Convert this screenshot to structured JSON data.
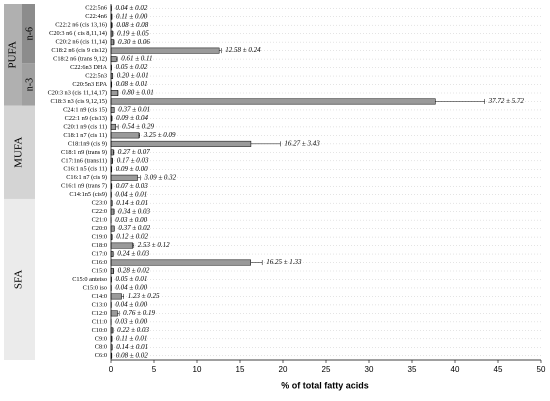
{
  "chart_data": {
    "type": "bar",
    "orientation": "horizontal",
    "x_label": "% of total fatty acids",
    "categories": [
      "C22:5n6",
      "C22:4n6",
      "C22:2 n6 (cis 13,16)",
      "C20:3 n6 ( cis 8,11,14)",
      "C20:2 n6 (cis 11,14)",
      "C18:2 n6 (cis 9 cis12)",
      "C18:2 n6 (trans 9,12)",
      "C22:6n3 DHA",
      "C22:5n3",
      "C20:5n3 EPA",
      "C20:3 n3 (cis 11,14,17)",
      "C18:3 n3 (cis 9,12,15)",
      "C24:1 n9 (cis 15)",
      "C22:1 n9 (cis13)",
      "C20:1 n9 (cis 11)",
      "C18:1 n7 (cis 11)",
      "C18:1n9 (cis 9)",
      "C18:1 n9 (trans 9)",
      "C17:1n6 (trans11)",
      "C16:1 n5 (cis 11)",
      "C16:1 n7 (cis 9)",
      "C16:1 n9 (trans 7)",
      "C14:1n5 (cis9)",
      "C23:0",
      "C22:0",
      "C21:0",
      "C20:0",
      "C19:0",
      "C18:0",
      "C17:0",
      "C16:0",
      "C15:0",
      "C15:0 anteiso",
      "C15:0 iso",
      "C14:0",
      "C13:0",
      "C12:0",
      "C11:0",
      "C10:0",
      "C9:0",
      "C8:0",
      "C6:0"
    ],
    "values": [
      0.04,
      0.11,
      0.08,
      0.19,
      0.3,
      12.58,
      0.61,
      0.05,
      0.2,
      0.08,
      0.8,
      37.72,
      0.37,
      0.09,
      0.54,
      3.25,
      16.27,
      0.27,
      0.17,
      0.09,
      3.09,
      0.07,
      0.04,
      0.14,
      0.34,
      0.03,
      0.37,
      0.12,
      2.53,
      0.24,
      16.25,
      0.28,
      0.05,
      0.04,
      1.23,
      0.04,
      0.76,
      0.03,
      0.22,
      0.11,
      0.14,
      0.08
    ],
    "errors": [
      0.02,
      0.0,
      0.08,
      0.05,
      0.06,
      0.24,
      0.11,
      0.02,
      0.01,
      0.01,
      0.01,
      5.72,
      0.01,
      0.04,
      0.29,
      0.09,
      3.43,
      0.07,
      0.03,
      0.0,
      0.32,
      0.03,
      0.01,
      0.01,
      0.03,
      0.0,
      0.02,
      0.02,
      0.12,
      0.03,
      1.33,
      0.02,
      0.01,
      0.0,
      0.25,
      0.0,
      0.19,
      0.0,
      0.03,
      0.01,
      0.01,
      0.02
    ],
    "value_labels": [
      "0.04 ± 0.02",
      "0.11 ± 0.00",
      "0.08 ± 0.08",
      "0.19 ± 0.05",
      "0.30 ± 0.06",
      "12.58 ± 0.24",
      "0.61 ± 0.11",
      "0.05 ± 0.02",
      "0.20 ± 0.01",
      "0.08 ± 0.01",
      "0.80 ± 0.01",
      "37.72 ± 5.72",
      "0.37 ± 0.01",
      "0.09 ± 0.04",
      "0.54 ± 0.29",
      "3.25 ± 0.09",
      "16.27 ± 3.43",
      "0.27 ± 0.07",
      "0.17 ± 0.03",
      "0.09 ± 0.00",
      "3.09 ± 0.32",
      "0.07 ± 0.03",
      "0.04 ± 0.01",
      "0.14 ± 0.01",
      "0.34 ± 0.03",
      "0.03 ± 0.00",
      "0.37 ± 0.02",
      "0.12 ± 0.02",
      "2.53 ± 0.12",
      "0.24 ± 0.03",
      "16.25 ± 1.33",
      "0.28 ± 0.02",
      "0.05 ± 0.01",
      "0.04 ± 0.00",
      "1.23 ± 0.25",
      "0.04 ± 0.00",
      "0.76 ± 0.19",
      "0.03 ± 0.00",
      "0.22 ± 0.03",
      "0.11 ± 0.01",
      "0.14 ± 0.01",
      "0.08 ± 0.02"
    ],
    "color": "#9a9a9a",
    "groups": [
      {
        "label": "PUFA",
        "rows": 12,
        "color": "#b0b0b0",
        "subgroups": [
          {
            "label": "n-6",
            "rows": 7,
            "color": "#8c8c8c"
          },
          {
            "label": "n-3",
            "rows": 5,
            "color": "#a0a0a0"
          }
        ]
      },
      {
        "label": "MUFA",
        "rows": 11,
        "color": "#d4d4d4"
      },
      {
        "label": "SFA",
        "rows": 19,
        "color": "#ebebeb"
      }
    ],
    "xlim": [
      0,
      50
    ],
    "xticks": [
      0,
      5,
      10,
      15,
      20,
      25,
      30,
      35,
      40,
      45,
      50
    ]
  }
}
